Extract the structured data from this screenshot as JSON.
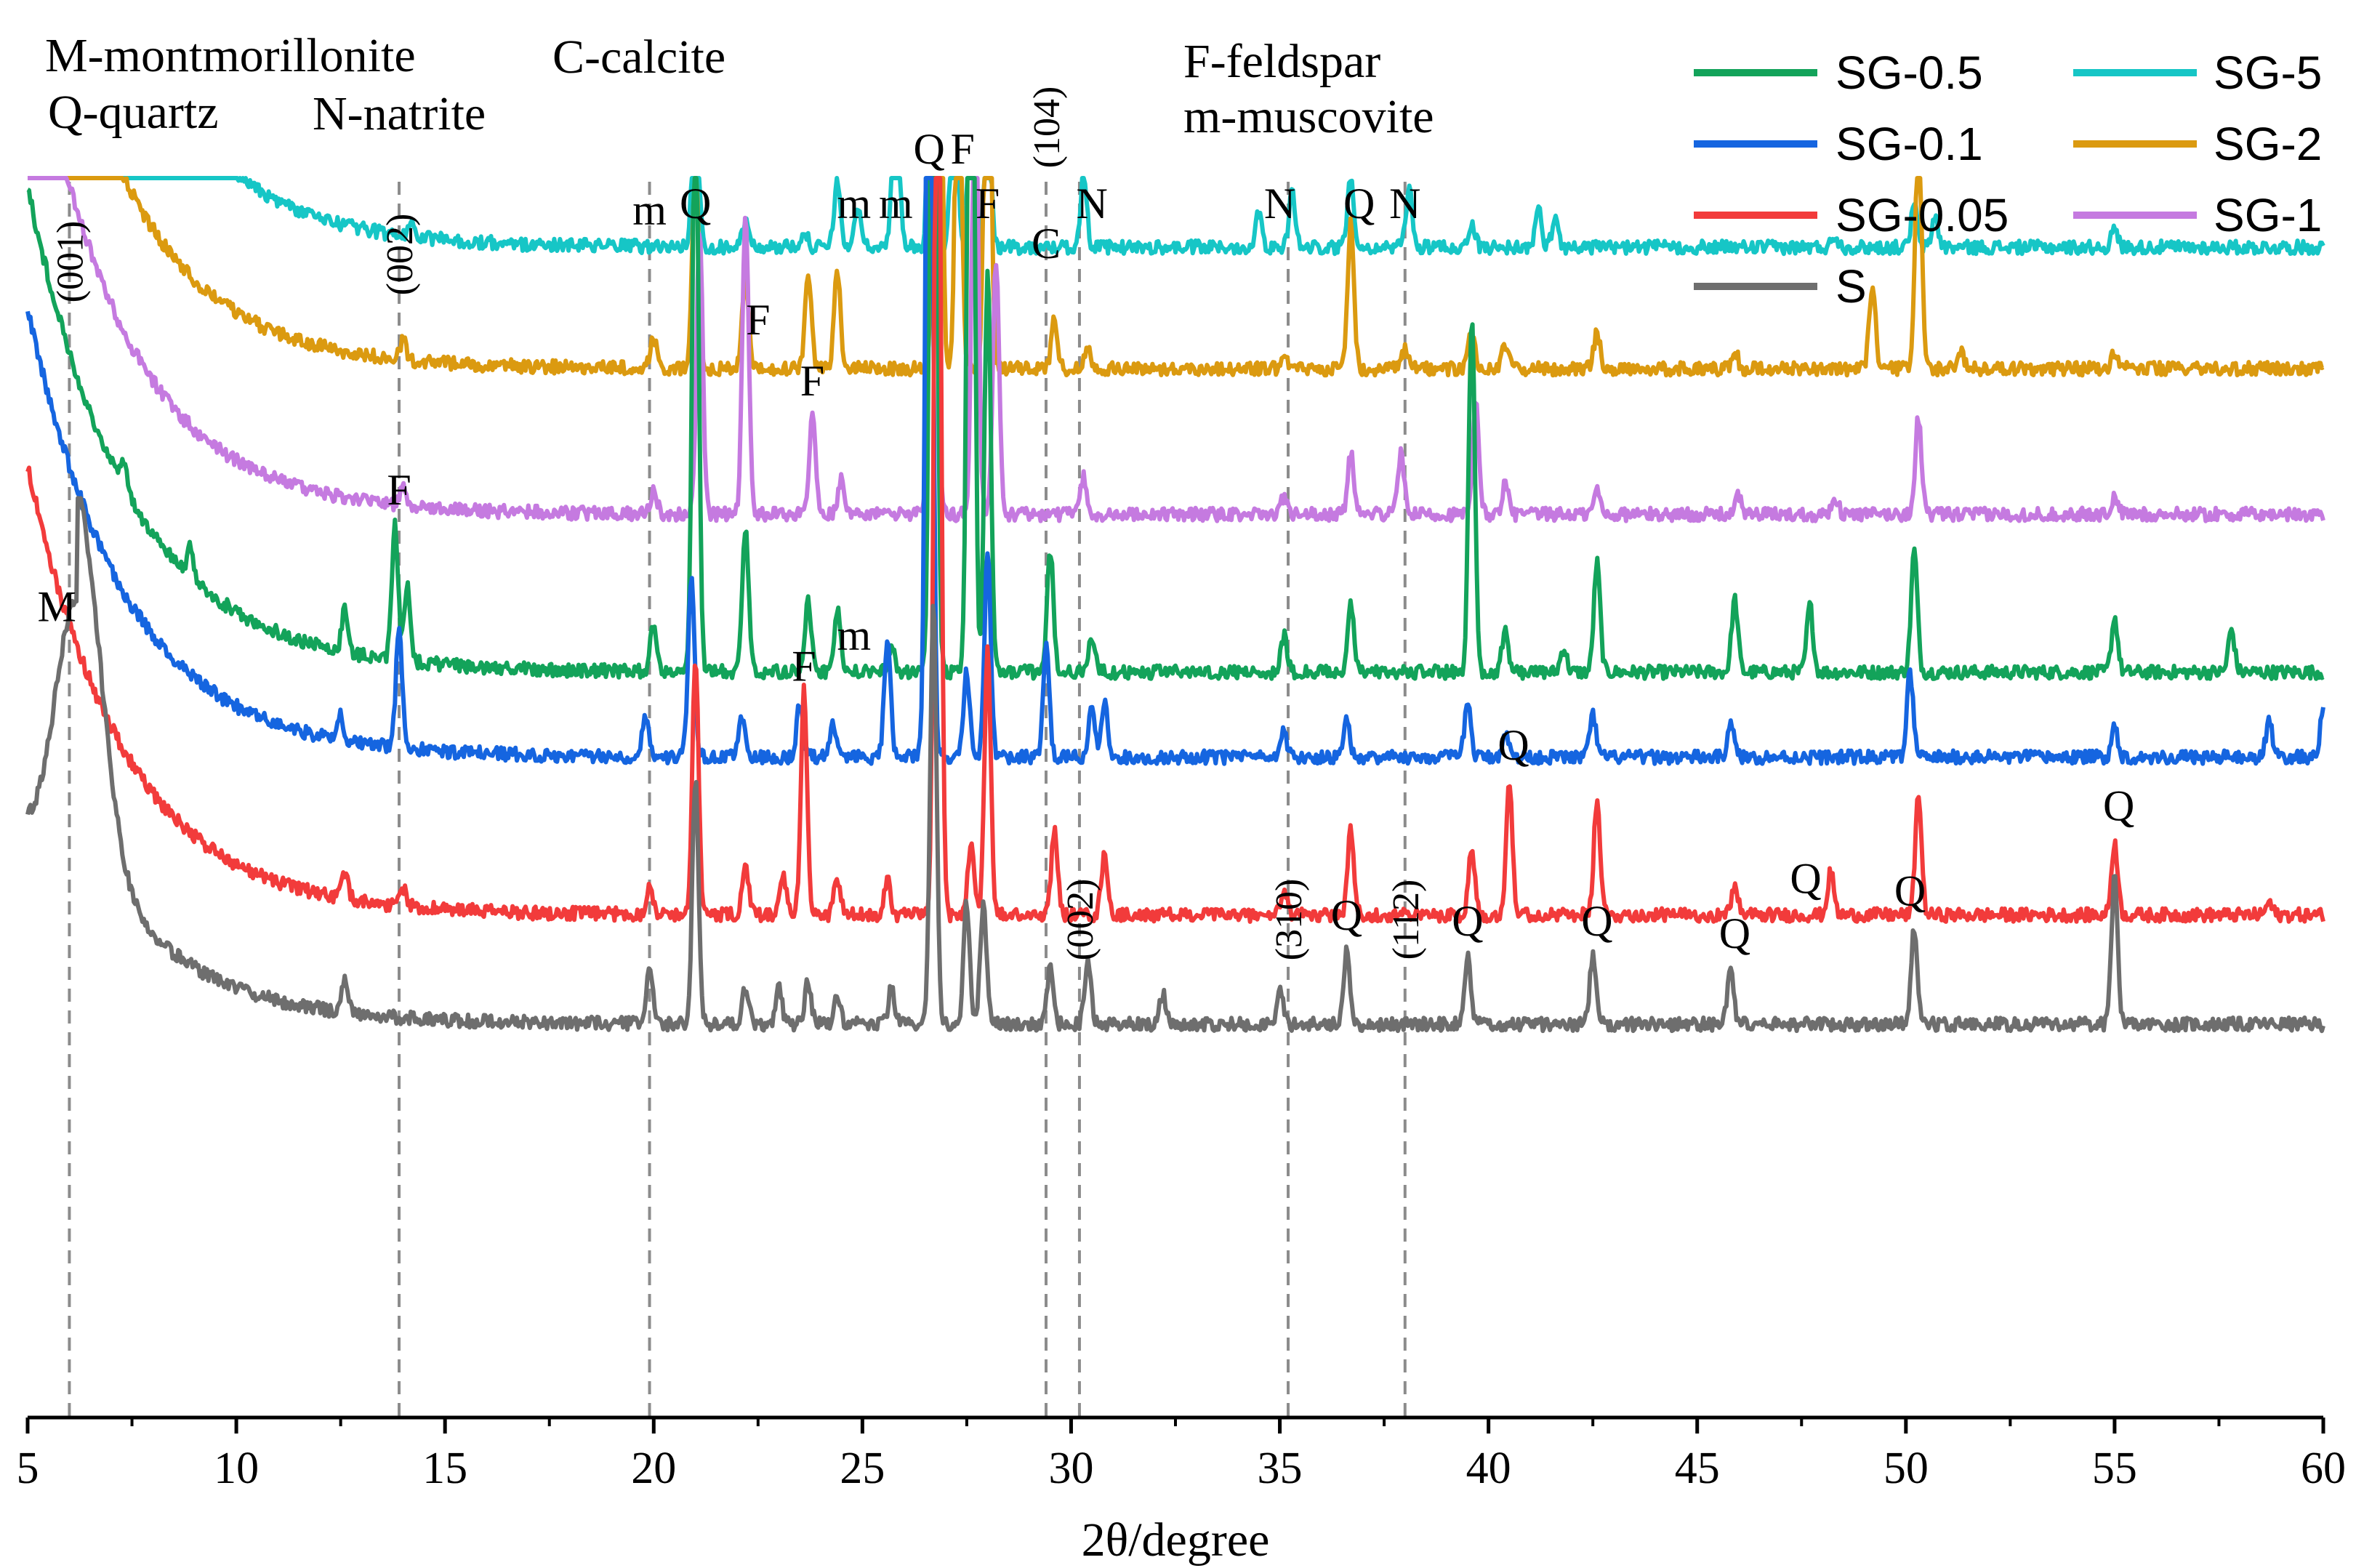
{
  "chart_data": {
    "type": "line",
    "title": "",
    "xlabel": "2θ/degree",
    "ylabel": "",
    "xlim": [
      5,
      60
    ],
    "x_ticks": [
      "5",
      "10",
      "15",
      "20",
      "25",
      "30",
      "35",
      "40",
      "45",
      "50",
      "55",
      "60"
    ],
    "y_ticks_shown": false,
    "legend_placement": "top-right",
    "colors": {
      "SG-0.5": "#13a35a",
      "SG-0.1": "#1565e0",
      "SG-0.05": "#f23b3b",
      "S": "#6e6e6e",
      "SG-5": "#16c6c6",
      "SG-2": "#db9a10",
      "SG-1": "#c57ae0"
    },
    "legend": [
      "SG-0.5",
      "SG-0.1",
      "SG-0.05",
      "S",
      "SG-5",
      "SG-2",
      "SG-1"
    ],
    "mineral_legend": {
      "line1": "M-montmorillonite",
      "line2": "C-calcite",
      "line3": "Q-quartz",
      "line4": "N-natrite",
      "line5": "F-feldspar",
      "line6": "m-muscovite"
    },
    "reference_lines": [
      {
        "x": 6.0,
        "label": "(001)"
      },
      {
        "x": 13.9,
        "label": "(002)"
      },
      {
        "x": 19.9
      },
      {
        "x": 29.4,
        "label": "(104)"
      },
      {
        "x": 30.2,
        "label": "(002)"
      },
      {
        "x": 35.2,
        "label": "(310)"
      },
      {
        "x": 38.0,
        "label": "(112)"
      }
    ],
    "series": [
      {
        "name": "SG-5",
        "baseline": 0.6,
        "start": 5.8,
        "decay": 2.2,
        "peaks": [
          [
            14.2,
            0.15
          ],
          [
            21.0,
            1.4
          ],
          [
            22.2,
            0.2
          ],
          [
            23.6,
            0.15
          ],
          [
            24.4,
            0.55
          ],
          [
            24.9,
            0.35
          ],
          [
            25.8,
            1.9
          ],
          [
            26.7,
            9
          ],
          [
            27.2,
            1.7
          ],
          [
            27.6,
            1.3
          ],
          [
            28.0,
            1.2
          ],
          [
            30.3,
            0.6
          ],
          [
            34.5,
            0.3
          ],
          [
            35.3,
            0.45
          ],
          [
            36.7,
            0.6
          ],
          [
            38.1,
            0.5
          ],
          [
            39.6,
            0.2
          ],
          [
            41.2,
            0.3
          ],
          [
            41.6,
            0.25
          ],
          [
            48.3,
            0.1
          ],
          [
            50.2,
            0.35
          ],
          [
            50.7,
            0.25
          ],
          [
            55.0,
            0.15
          ]
        ]
      },
      {
        "name": "SG-2",
        "baseline": 1.6,
        "start": 4.5,
        "decay": 2.2,
        "peaks": [
          [
            14.0,
            0.15
          ],
          [
            20.0,
            0.25
          ],
          [
            21.0,
            1.7
          ],
          [
            22.2,
            0.75
          ],
          [
            23.7,
            0.8
          ],
          [
            24.4,
            0.8
          ],
          [
            26.8,
            9
          ],
          [
            27.3,
            3
          ],
          [
            28.0,
            3.8
          ],
          [
            29.6,
            0.4
          ],
          [
            30.4,
            0.2
          ],
          [
            35.1,
            0.15
          ],
          [
            36.7,
            1.2
          ],
          [
            38.0,
            0.15
          ],
          [
            39.6,
            0.3
          ],
          [
            40.4,
            0.2
          ],
          [
            42.6,
            0.3
          ],
          [
            45.9,
            0.15
          ],
          [
            49.2,
            0.7
          ],
          [
            50.3,
            2.0
          ],
          [
            51.3,
            0.15
          ],
          [
            55.0,
            0.15
          ]
        ]
      },
      {
        "name": "SG-1",
        "baseline": 2.8,
        "start": 4.3,
        "decay": 2.2,
        "peaks": [
          [
            14.0,
            0.15
          ],
          [
            20.0,
            0.2
          ],
          [
            21.1,
            2.3
          ],
          [
            22.2,
            2.5
          ],
          [
            23.8,
            0.8
          ],
          [
            24.5,
            0.3
          ],
          [
            26.7,
            9
          ],
          [
            27.7,
            3.8
          ],
          [
            28.2,
            2.1
          ],
          [
            30.3,
            0.3
          ],
          [
            35.1,
            0.15
          ],
          [
            36.7,
            0.5
          ],
          [
            37.9,
            0.5
          ],
          [
            39.7,
            0.9
          ],
          [
            40.4,
            0.25
          ],
          [
            42.6,
            0.2
          ],
          [
            46.0,
            0.15
          ],
          [
            48.3,
            0.15
          ],
          [
            50.3,
            0.8
          ],
          [
            55.0,
            0.15
          ]
        ]
      },
      {
        "name": "SG-0.5",
        "baseline": 4.1,
        "start": 4.0,
        "decay": 2.4,
        "peaks": [
          [
            7.3,
            0.2
          ],
          [
            8.9,
            0.25
          ],
          [
            12.6,
            0.35
          ],
          [
            13.8,
            1.1
          ],
          [
            14.1,
            0.6
          ],
          [
            20.0,
            0.4
          ],
          [
            21.0,
            4.8
          ],
          [
            22.2,
            1.2
          ],
          [
            23.7,
            0.6
          ],
          [
            24.4,
            0.5
          ],
          [
            25.7,
            0.2
          ],
          [
            26.7,
            9
          ],
          [
            27.6,
            9
          ],
          [
            28.0,
            3.3
          ],
          [
            29.5,
            1.0
          ],
          [
            30.5,
            0.3
          ],
          [
            35.1,
            0.3
          ],
          [
            36.7,
            0.55
          ],
          [
            39.6,
            2.9
          ],
          [
            40.4,
            0.35
          ],
          [
            41.8,
            0.2
          ],
          [
            42.6,
            0.9
          ],
          [
            45.9,
            0.6
          ],
          [
            47.7,
            0.55
          ],
          [
            50.2,
            1.0
          ],
          [
            55.0,
            0.45
          ],
          [
            57.8,
            0.35
          ]
        ]
      },
      {
        "name": "SG-0.1",
        "baseline": 4.8,
        "start": 3.7,
        "decay": 2.3,
        "peaks": [
          [
            12.5,
            0.2
          ],
          [
            13.9,
            1.0
          ],
          [
            19.8,
            0.35
          ],
          [
            20.9,
            1.5
          ],
          [
            22.1,
            0.35
          ],
          [
            23.5,
            0.45
          ],
          [
            24.3,
            0.3
          ],
          [
            25.6,
            1.0
          ],
          [
            26.6,
            9
          ],
          [
            27.5,
            0.7
          ],
          [
            28.0,
            1.7
          ],
          [
            29.4,
            0.9
          ],
          [
            30.5,
            0.4
          ],
          [
            30.8,
            0.45
          ],
          [
            35.1,
            0.2
          ],
          [
            36.6,
            0.35
          ],
          [
            39.5,
            0.45
          ],
          [
            40.4,
            0.2
          ],
          [
            42.5,
            0.35
          ],
          [
            45.8,
            0.3
          ],
          [
            50.1,
            0.7
          ],
          [
            55.0,
            0.25
          ],
          [
            58.7,
            0.3
          ],
          [
            60.0,
            0.4
          ]
        ]
      },
      {
        "name": "SG-0.05",
        "baseline": 6.1,
        "start": 3.7,
        "decay": 2.3,
        "peaks": [
          [
            12.6,
            0.2
          ],
          [
            14.0,
            0.15
          ],
          [
            19.9,
            0.25
          ],
          [
            21.0,
            2.1
          ],
          [
            22.2,
            0.4
          ],
          [
            23.1,
            0.3
          ],
          [
            23.6,
            1.85
          ],
          [
            24.4,
            0.3
          ],
          [
            25.6,
            0.3
          ],
          [
            26.8,
            9
          ],
          [
            27.6,
            0.6
          ],
          [
            28.0,
            2.2
          ],
          [
            29.6,
            0.7
          ],
          [
            30.8,
            0.5
          ],
          [
            35.1,
            0.2
          ],
          [
            36.7,
            0.7
          ],
          [
            39.6,
            0.55
          ],
          [
            40.5,
            1.1
          ],
          [
            42.6,
            0.95
          ],
          [
            45.9,
            0.25
          ],
          [
            48.2,
            0.35
          ],
          [
            50.3,
            1.0
          ],
          [
            55.0,
            0.6
          ],
          [
            58.7,
            0.1
          ]
        ]
      },
      {
        "name": "S",
        "baseline": 7.0,
        "start": 1.5,
        "decay": 1.8,
        "hump": [
          6.2,
          2.7,
          0.55
        ],
        "peaks": [
          [
            12.6,
            0.3
          ],
          [
            19.9,
            0.45
          ],
          [
            21.0,
            2.0
          ],
          [
            22.2,
            0.3
          ],
          [
            23.0,
            0.3
          ],
          [
            23.7,
            0.35
          ],
          [
            24.4,
            0.25
          ],
          [
            25.7,
            0.3
          ],
          [
            26.7,
            3.5
          ],
          [
            27.5,
            1.0
          ],
          [
            27.9,
            1.0
          ],
          [
            29.5,
            0.45
          ],
          [
            30.4,
            0.5
          ],
          [
            32.2,
            0.25
          ],
          [
            35.0,
            0.3
          ],
          [
            36.6,
            0.6
          ],
          [
            39.5,
            0.55
          ],
          [
            42.5,
            0.55
          ],
          [
            45.8,
            0.45
          ],
          [
            50.2,
            0.8
          ],
          [
            55.0,
            1.2
          ]
        ]
      }
    ],
    "peak_labels": [
      {
        "text": "M",
        "x": 5.7,
        "line": "S"
      },
      {
        "text": "F",
        "x": 13.9,
        "line": "SG-0.5"
      },
      {
        "text": "m",
        "x": 19.9,
        "line": "SG-5"
      },
      {
        "text": "Q",
        "x": 21.0,
        "line": "SG-5"
      },
      {
        "text": "m",
        "x": 24.8,
        "line": "SG-5"
      },
      {
        "text": "m",
        "x": 25.8,
        "line": "SG-5"
      },
      {
        "text": "F",
        "x": 22.5,
        "line": "SG-2"
      },
      {
        "text": "F",
        "x": 23.8,
        "line": "SG-1"
      },
      {
        "text": "m",
        "x": 24.8,
        "line": "SG-0.5"
      },
      {
        "text": "F",
        "x": 23.6,
        "line": "SG-0.1"
      },
      {
        "text": "Q",
        "x": 26.6,
        "line": "top"
      },
      {
        "text": "F",
        "x": 27.4,
        "line": "top"
      },
      {
        "text": "F",
        "x": 28.0,
        "line": "SG-5"
      },
      {
        "text": "C",
        "x": 29.4,
        "line": "top"
      },
      {
        "text": "N",
        "x": 30.5,
        "line": "SG-5"
      },
      {
        "text": "N",
        "x": 35.0,
        "line": "SG-5"
      },
      {
        "text": "N",
        "x": 38.0,
        "line": "SG-5"
      },
      {
        "text": "Q",
        "x": 36.9,
        "line": "SG-5"
      },
      {
        "text": "Q",
        "x": 40.6,
        "line": "SG-0.05"
      },
      {
        "text": "Q",
        "x": 47.6,
        "line": "SG-0.05"
      },
      {
        "text": "Q",
        "x": 55.1,
        "line": "SG-0.05"
      },
      {
        "text": "Q",
        "x": 36.6,
        "line": "S"
      },
      {
        "text": "Q",
        "x": 39.5,
        "line": "S"
      },
      {
        "text": "Q",
        "x": 42.6,
        "line": "S"
      },
      {
        "text": "Q",
        "x": 45.9,
        "line": "S"
      },
      {
        "text": "Q",
        "x": 50.1,
        "line": "S"
      }
    ]
  }
}
